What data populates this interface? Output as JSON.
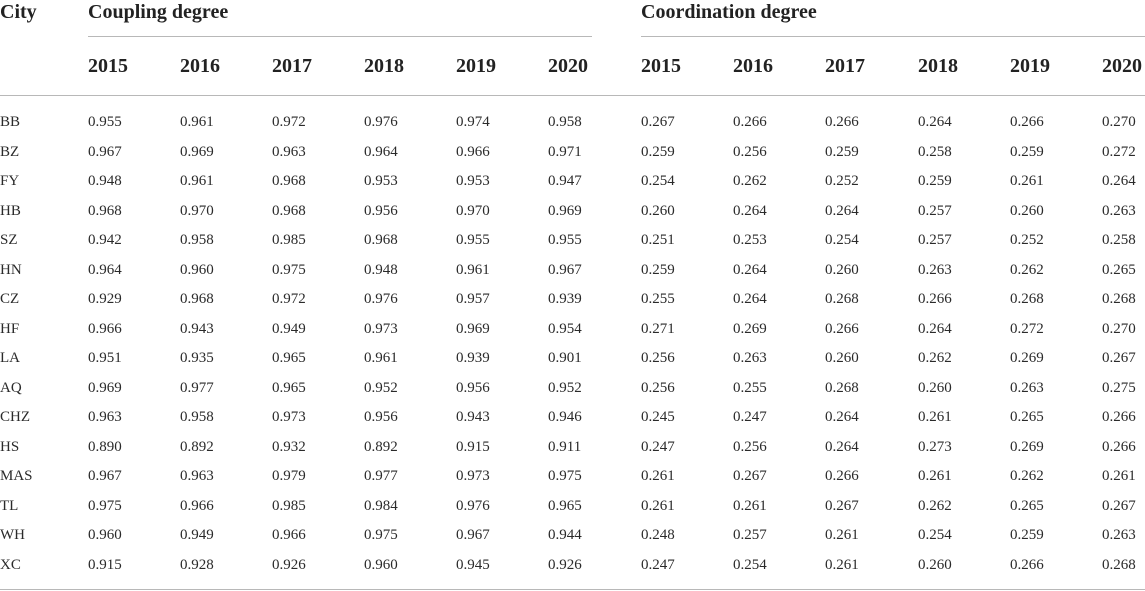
{
  "table": {
    "city_header": "City",
    "group_headers": [
      "Coupling degree",
      "Coordination degree"
    ],
    "years": [
      "2015",
      "2016",
      "2017",
      "2018",
      "2019",
      "2020"
    ],
    "rows": [
      {
        "city": "BB",
        "coupling": [
          "0.955",
          "0.961",
          "0.972",
          "0.976",
          "0.974",
          "0.958"
        ],
        "coordination": [
          "0.267",
          "0.266",
          "0.266",
          "0.264",
          "0.266",
          "0.270"
        ]
      },
      {
        "city": "BZ",
        "coupling": [
          "0.967",
          "0.969",
          "0.963",
          "0.964",
          "0.966",
          "0.971"
        ],
        "coordination": [
          "0.259",
          "0.256",
          "0.259",
          "0.258",
          "0.259",
          "0.272"
        ]
      },
      {
        "city": "FY",
        "coupling": [
          "0.948",
          "0.961",
          "0.968",
          "0.953",
          "0.953",
          "0.947"
        ],
        "coordination": [
          "0.254",
          "0.262",
          "0.252",
          "0.259",
          "0.261",
          "0.264"
        ]
      },
      {
        "city": "HB",
        "coupling": [
          "0.968",
          "0.970",
          "0.968",
          "0.956",
          "0.970",
          "0.969"
        ],
        "coordination": [
          "0.260",
          "0.264",
          "0.264",
          "0.257",
          "0.260",
          "0.263"
        ]
      },
      {
        "city": "SZ",
        "coupling": [
          "0.942",
          "0.958",
          "0.985",
          "0.968",
          "0.955",
          "0.955"
        ],
        "coordination": [
          "0.251",
          "0.253",
          "0.254",
          "0.257",
          "0.252",
          "0.258"
        ]
      },
      {
        "city": "HN",
        "coupling": [
          "0.964",
          "0.960",
          "0.975",
          "0.948",
          "0.961",
          "0.967"
        ],
        "coordination": [
          "0.259",
          "0.264",
          "0.260",
          "0.263",
          "0.262",
          "0.265"
        ]
      },
      {
        "city": "CZ",
        "coupling": [
          "0.929",
          "0.968",
          "0.972",
          "0.976",
          "0.957",
          "0.939"
        ],
        "coordination": [
          "0.255",
          "0.264",
          "0.268",
          "0.266",
          "0.268",
          "0.268"
        ]
      },
      {
        "city": "HF",
        "coupling": [
          "0.966",
          "0.943",
          "0.949",
          "0.973",
          "0.969",
          "0.954"
        ],
        "coordination": [
          "0.271",
          "0.269",
          "0.266",
          "0.264",
          "0.272",
          "0.270"
        ]
      },
      {
        "city": "LA",
        "coupling": [
          "0.951",
          "0.935",
          "0.965",
          "0.961",
          "0.939",
          "0.901"
        ],
        "coordination": [
          "0.256",
          "0.263",
          "0.260",
          "0.262",
          "0.269",
          "0.267"
        ]
      },
      {
        "city": "AQ",
        "coupling": [
          "0.969",
          "0.977",
          "0.965",
          "0.952",
          "0.956",
          "0.952"
        ],
        "coordination": [
          "0.256",
          "0.255",
          "0.268",
          "0.260",
          "0.263",
          "0.275"
        ]
      },
      {
        "city": "CHZ",
        "coupling": [
          "0.963",
          "0.958",
          "0.973",
          "0.956",
          "0.943",
          "0.946"
        ],
        "coordination": [
          "0.245",
          "0.247",
          "0.264",
          "0.261",
          "0.265",
          "0.266"
        ]
      },
      {
        "city": "HS",
        "coupling": [
          "0.890",
          "0.892",
          "0.932",
          "0.892",
          "0.915",
          "0.911"
        ],
        "coordination": [
          "0.247",
          "0.256",
          "0.264",
          "0.273",
          "0.269",
          "0.266"
        ]
      },
      {
        "city": "MAS",
        "coupling": [
          "0.967",
          "0.963",
          "0.979",
          "0.977",
          "0.973",
          "0.975"
        ],
        "coordination": [
          "0.261",
          "0.267",
          "0.266",
          "0.261",
          "0.262",
          "0.261"
        ]
      },
      {
        "city": "TL",
        "coupling": [
          "0.975",
          "0.966",
          "0.985",
          "0.984",
          "0.976",
          "0.965"
        ],
        "coordination": [
          "0.261",
          "0.261",
          "0.267",
          "0.262",
          "0.265",
          "0.267"
        ]
      },
      {
        "city": "WH",
        "coupling": [
          "0.960",
          "0.949",
          "0.966",
          "0.975",
          "0.967",
          "0.944"
        ],
        "coordination": [
          "0.248",
          "0.257",
          "0.261",
          "0.254",
          "0.259",
          "0.263"
        ]
      },
      {
        "city": "XC",
        "coupling": [
          "0.915",
          "0.928",
          "0.926",
          "0.960",
          "0.945",
          "0.926"
        ],
        "coordination": [
          "0.247",
          "0.254",
          "0.261",
          "0.260",
          "0.266",
          "0.268"
        ]
      }
    ]
  }
}
